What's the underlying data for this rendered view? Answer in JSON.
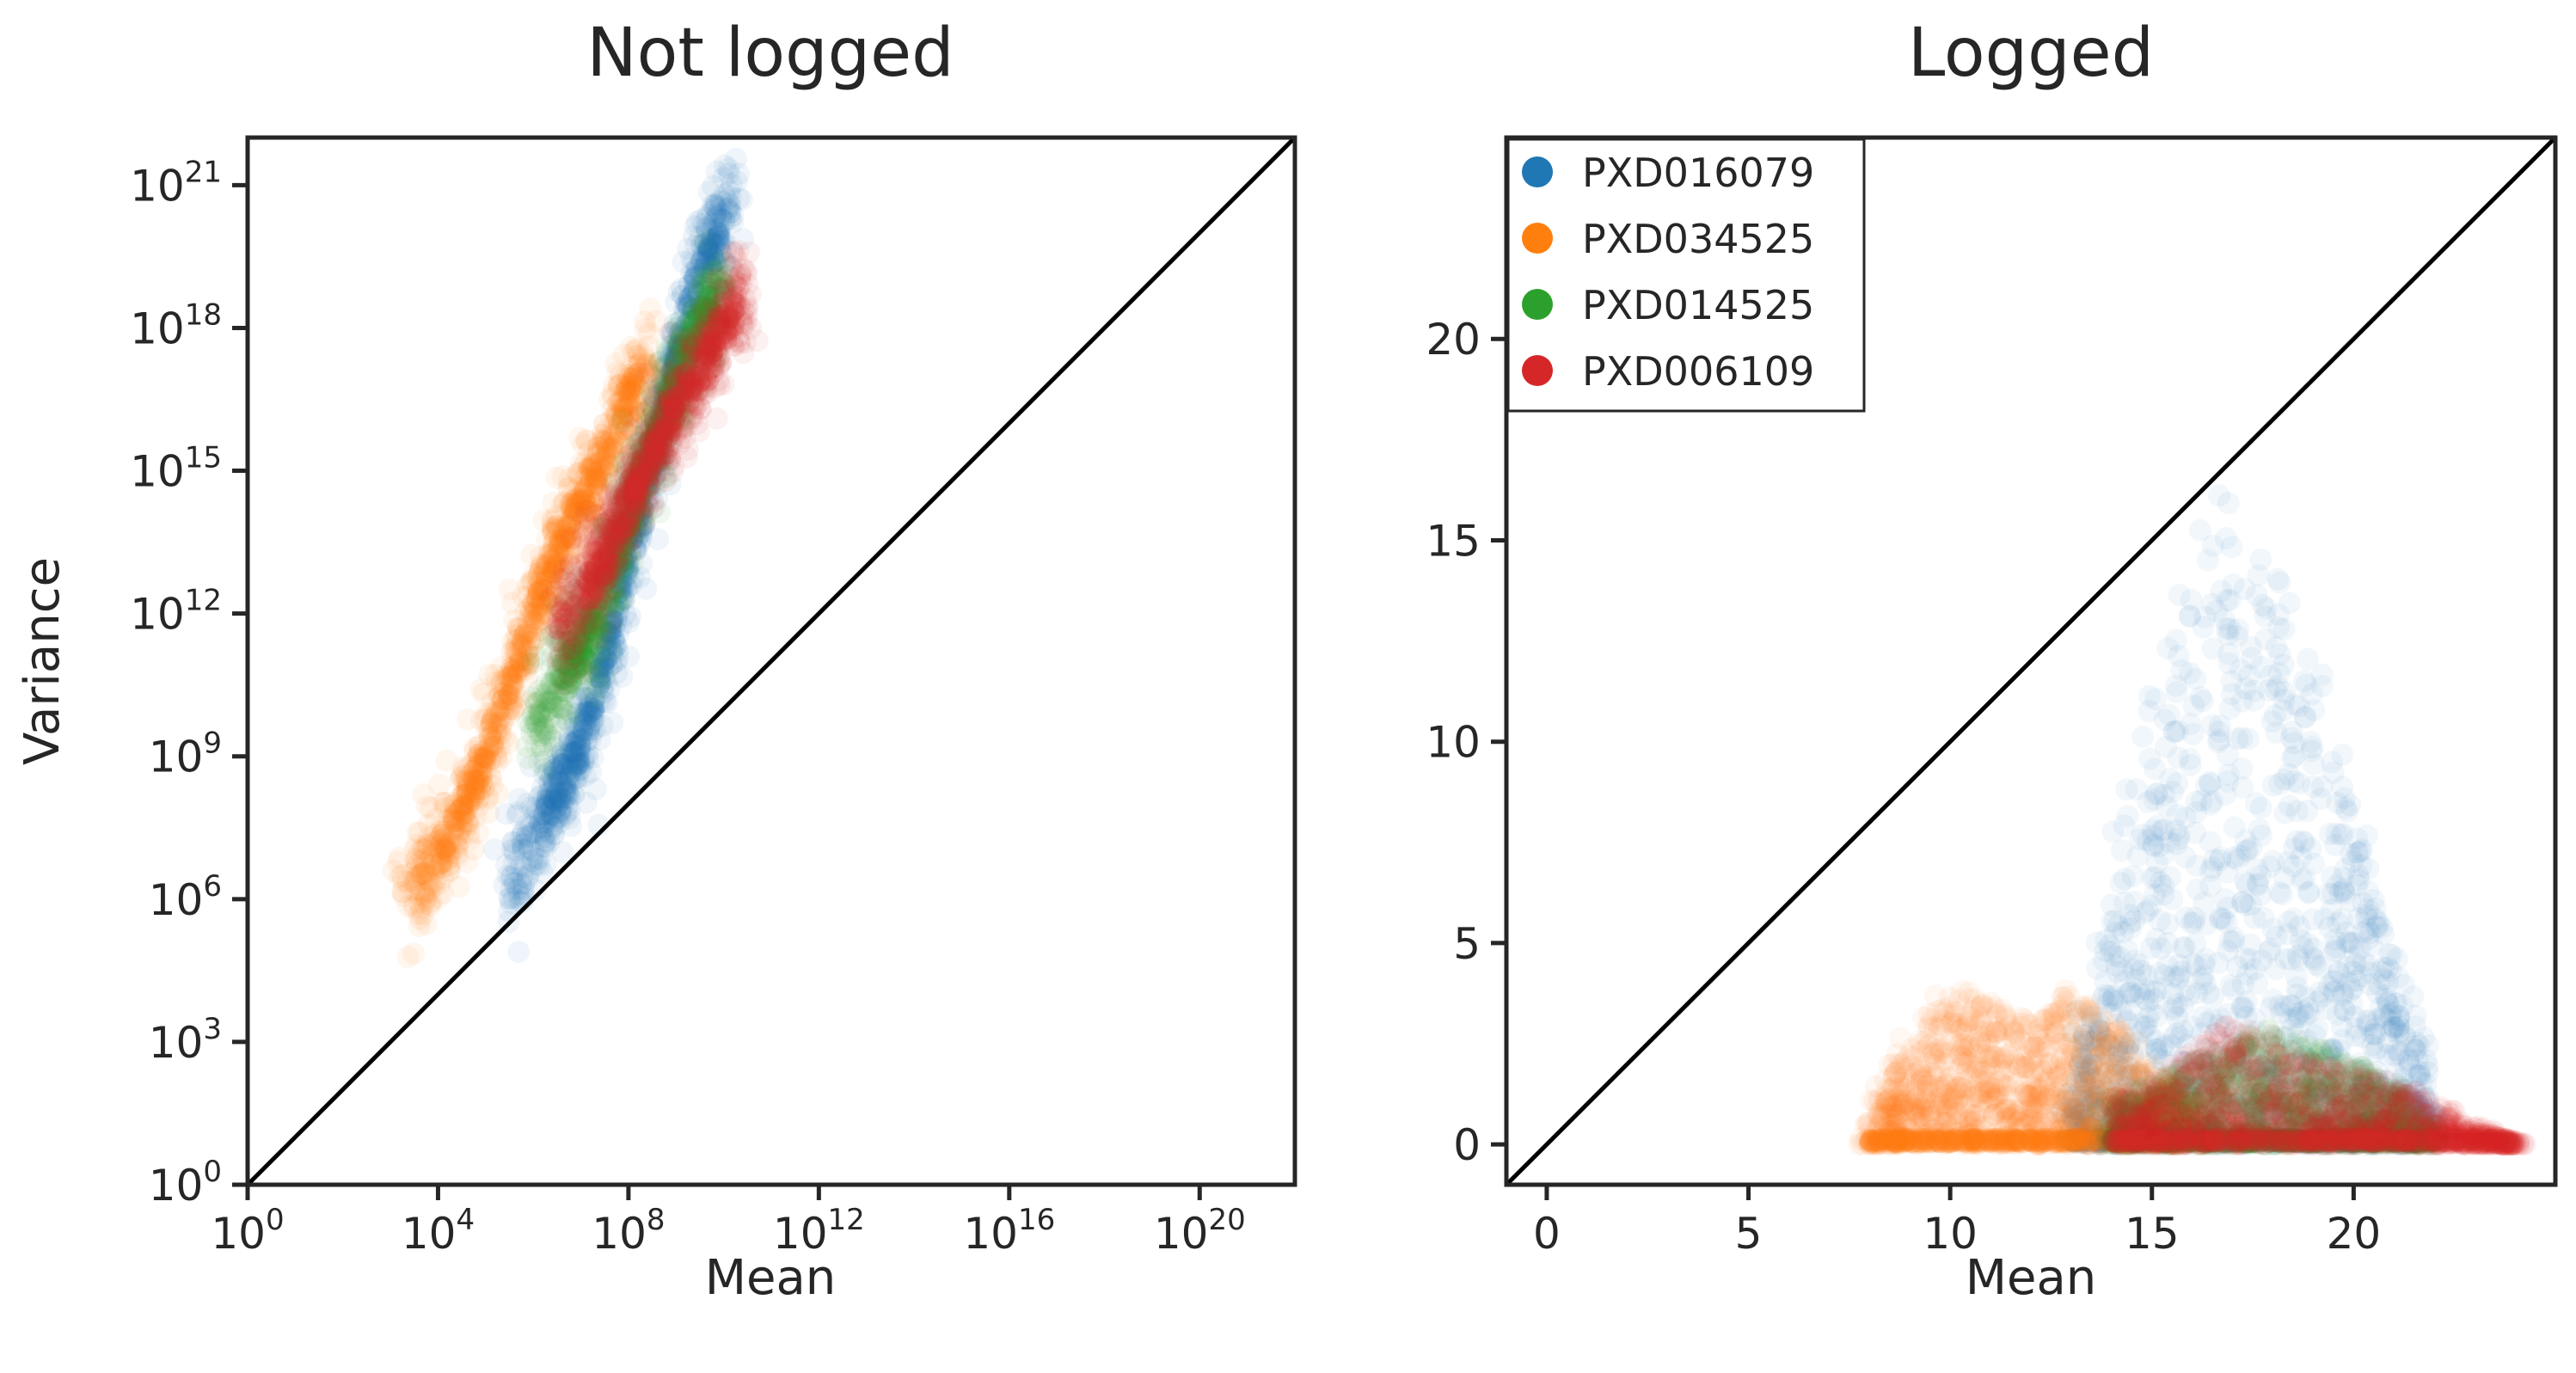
{
  "colors": {
    "PXD016079": "#1f77b4",
    "PXD034525": "#ff7f0e",
    "PXD014525": "#2ca02c",
    "PXD006109": "#d62728",
    "axis": "#262626",
    "identity_line": "#000000"
  },
  "chart_data": [
    {
      "type": "scatter",
      "title": "Not logged",
      "xlabel": "Mean",
      "ylabel": "Variance",
      "xscale": "log",
      "yscale": "log",
      "xlim_log10": [
        0,
        22
      ],
      "ylim_log10": [
        0,
        22
      ],
      "x_ticks": [
        {
          "base": "10",
          "exp": "0",
          "log10": 0
        },
        {
          "base": "10",
          "exp": "4",
          "log10": 4
        },
        {
          "base": "10",
          "exp": "8",
          "log10": 8
        },
        {
          "base": "10",
          "exp": "12",
          "log10": 12
        },
        {
          "base": "10",
          "exp": "16",
          "log10": 16
        },
        {
          "base": "10",
          "exp": "20",
          "log10": 20
        }
      ],
      "y_ticks": [
        {
          "base": "10",
          "exp": "0",
          "log10": 0
        },
        {
          "base": "10",
          "exp": "3",
          "log10": 3
        },
        {
          "base": "10",
          "exp": "6",
          "log10": 6
        },
        {
          "base": "10",
          "exp": "9",
          "log10": 9
        },
        {
          "base": "10",
          "exp": "12",
          "log10": 12
        },
        {
          "base": "10",
          "exp": "15",
          "log10": 15
        },
        {
          "base": "10",
          "exp": "18",
          "log10": 18
        },
        {
          "base": "10",
          "exp": "21",
          "log10": 21
        }
      ],
      "identity_line": true,
      "grid": false,
      "legend": "none",
      "series": [
        {
          "name": "PXD016079",
          "mean_log10": [
            5.5,
            6.0,
            6.5,
            7.0,
            7.5,
            8.0,
            8.5,
            9.0,
            9.5,
            10.0,
            10.2
          ],
          "variance_log10": [
            6.2,
            7.3,
            8.2,
            9.3,
            11.0,
            13.2,
            15.2,
            17.3,
            19.2,
            20.3,
            20.8
          ]
        },
        {
          "name": "PXD034525",
          "mean_log10": [
            3.2,
            4.0,
            4.5,
            5.0,
            5.5,
            6.0,
            6.5,
            7.0,
            7.5,
            8.0,
            8.5
          ],
          "variance_log10": [
            5.8,
            7.0,
            7.8,
            9.0,
            10.5,
            12.0,
            13.3,
            14.3,
            15.3,
            16.5,
            17.5
          ]
        },
        {
          "name": "PXD014525",
          "mean_log10": [
            6.0,
            6.5,
            7.0,
            7.5,
            8.0,
            8.5,
            9.0,
            9.5,
            10.0
          ],
          "variance_log10": [
            9.5,
            10.5,
            11.3,
            12.5,
            14.0,
            15.5,
            16.8,
            18.0,
            19.0
          ]
        },
        {
          "name": "PXD006109",
          "mean_log10": [
            6.5,
            7.0,
            7.5,
            8.0,
            8.5,
            9.0,
            9.5,
            10.0,
            10.5
          ],
          "variance_log10": [
            11.5,
            12.3,
            13.2,
            14.3,
            15.3,
            16.3,
            17.2,
            18.0,
            18.8
          ]
        }
      ]
    },
    {
      "type": "scatter",
      "title": "Logged",
      "xlabel": "Mean",
      "ylabel": "",
      "xlim": [
        -1,
        25
      ],
      "ylim": [
        -1,
        25
      ],
      "x_ticks": [
        "0",
        "5",
        "10",
        "15",
        "20"
      ],
      "y_ticks": [
        "0",
        "5",
        "10",
        "15",
        "20"
      ],
      "identity_line": true,
      "grid": false,
      "legend": "upper left",
      "series": [
        {
          "name": "PXD016079",
          "x": [
            13,
            14,
            15,
            16,
            17,
            18,
            19,
            20,
            21,
            22
          ],
          "y_max": [
            1.5,
            5.5,
            11.0,
            15.0,
            16.5,
            15.0,
            12.0,
            8.0,
            4.5,
            1.5
          ]
        },
        {
          "name": "PXD034525",
          "x": [
            8,
            9,
            10,
            11,
            12,
            13,
            14,
            15,
            16
          ],
          "y_max": [
            1.0,
            2.5,
            4.0,
            3.5,
            3.0,
            4.0,
            3.0,
            2.0,
            1.0
          ]
        },
        {
          "name": "PXD014525",
          "x": [
            14,
            15,
            16,
            17,
            18,
            19,
            20,
            21,
            22
          ],
          "y_max": [
            1.0,
            1.5,
            2.0,
            2.5,
            3.0,
            2.5,
            2.0,
            1.5,
            0.5
          ]
        },
        {
          "name": "PXD006109",
          "x": [
            14,
            15,
            16,
            17,
            18,
            19,
            20,
            21,
            22,
            23,
            24
          ],
          "y_max": [
            1.0,
            1.5,
            2.5,
            3.0,
            2.5,
            2.0,
            2.0,
            1.5,
            1.0,
            0.5,
            0.0
          ]
        }
      ]
    }
  ]
}
